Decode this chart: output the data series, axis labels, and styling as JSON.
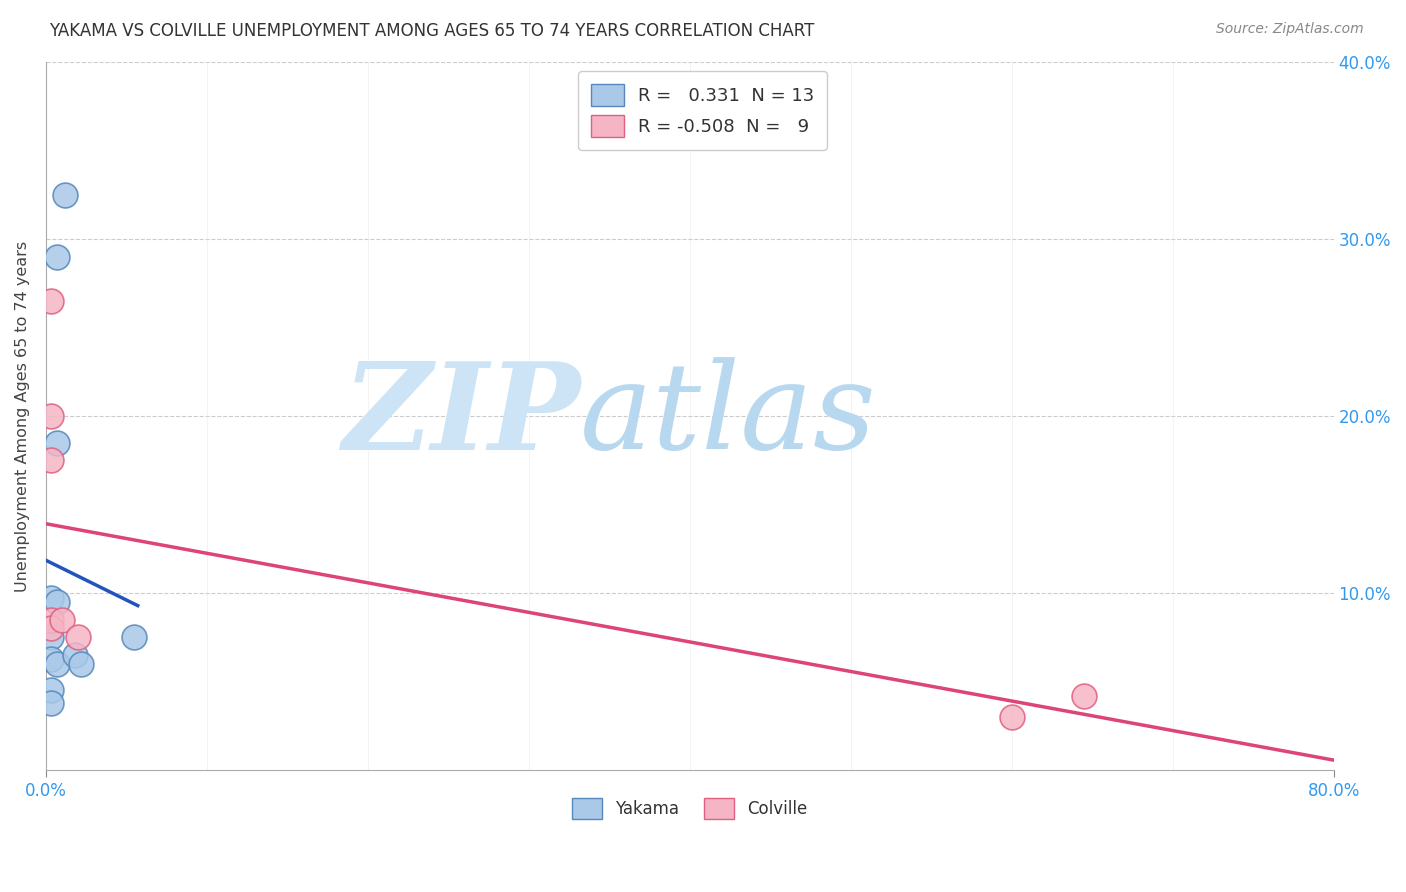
{
  "title": "YAKAMA VS COLVILLE UNEMPLOYMENT AMONG AGES 65 TO 74 YEARS CORRELATION CHART",
  "source": "Source: ZipAtlas.com",
  "ylabel": "Unemployment Among Ages 65 to 74 years",
  "xlim": [
    0,
    0.8
  ],
  "ylim": [
    0,
    0.4
  ],
  "xtick_positions": [
    0.0,
    0.8
  ],
  "xtick_labels": [
    "0.0%",
    "80.0%"
  ],
  "ytick_positions": [
    0.1,
    0.2,
    0.3,
    0.4
  ],
  "ytick_labels": [
    "10.0%",
    "20.0%",
    "30.0%",
    "40.0%"
  ],
  "grid_yticks": [
    0.1,
    0.2,
    0.3,
    0.4
  ],
  "grid_xticks": [
    0.0,
    0.1,
    0.2,
    0.3,
    0.4,
    0.5,
    0.6,
    0.7,
    0.8
  ],
  "yakama_points": [
    [
      0.003,
      0.097
    ],
    [
      0.003,
      0.075
    ],
    [
      0.003,
      0.063
    ],
    [
      0.007,
      0.29
    ],
    [
      0.007,
      0.185
    ],
    [
      0.007,
      0.095
    ],
    [
      0.007,
      0.06
    ],
    [
      0.012,
      0.325
    ],
    [
      0.018,
      0.065
    ],
    [
      0.022,
      0.06
    ],
    [
      0.055,
      0.075
    ],
    [
      0.003,
      0.045
    ],
    [
      0.003,
      0.038
    ]
  ],
  "colville_points": [
    [
      0.003,
      0.265
    ],
    [
      0.003,
      0.2
    ],
    [
      0.003,
      0.175
    ],
    [
      0.003,
      0.085
    ],
    [
      0.003,
      0.08
    ],
    [
      0.01,
      0.085
    ],
    [
      0.02,
      0.075
    ],
    [
      0.6,
      0.03
    ],
    [
      0.645,
      0.042
    ]
  ],
  "yakama_color": "#aac8e8",
  "yakama_edge_color": "#5588bb",
  "colville_color": "#f5b5c5",
  "colville_edge_color": "#e06080",
  "trend_yakama_color": "#2255bb",
  "trend_colville_color": "#dd4477",
  "trend_yakama_dashed_color": "#6699cc",
  "yakama_R": 0.331,
  "yakama_N": 13,
  "colville_R": -0.508,
  "colville_N": 9,
  "background_color": "#ffffff",
  "grid_color": "#cccccc",
  "watermark_zip_color": "#cce4f5",
  "watermark_atlas_color": "#b8d8f0"
}
